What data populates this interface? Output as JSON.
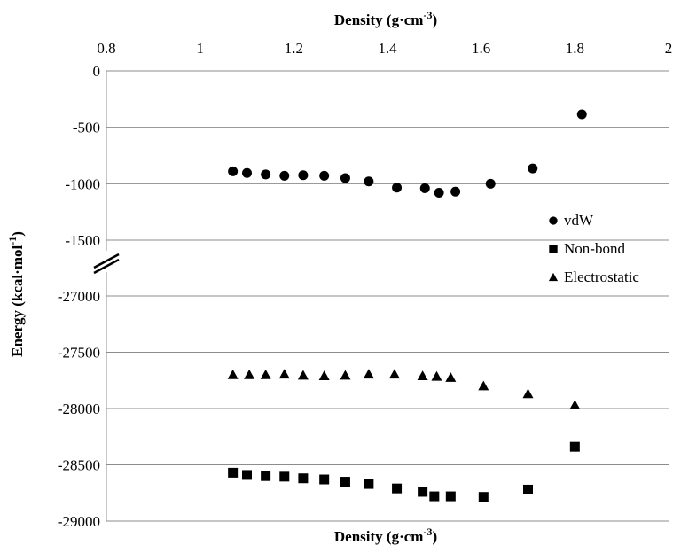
{
  "chart_data": {
    "type": "scatter",
    "x_axis_title": "Density (g·cm",
    "x_axis_title_sup": "-3",
    "x_axis_title_close": ")",
    "y_axis_title": "Energy (kcal·mol",
    "y_axis_title_sup": "-1",
    "y_axis_title_close": ")",
    "xlim": [
      0.8,
      2
    ],
    "x_ticks": [
      "0.8",
      "1",
      "1.2",
      "1.4",
      "1.6",
      "1.8",
      "2"
    ],
    "y_break": true,
    "y_upper_ticks": [
      "0",
      "-500",
      "-1000",
      "-1500"
    ],
    "y_lower_ticks": [
      "-27000",
      "-27500",
      "-28000",
      "-28500",
      "-29000"
    ],
    "y_upper_range": [
      -1500,
      0
    ],
    "y_lower_range": [
      -29000,
      -27000
    ],
    "grid": "horizontal",
    "legend_position": "right",
    "series": [
      {
        "name": "vdW",
        "marker": "circle",
        "color": "#000000",
        "points": [
          [
            1.07,
            -890
          ],
          [
            1.1,
            -905
          ],
          [
            1.14,
            -918
          ],
          [
            1.18,
            -930
          ],
          [
            1.22,
            -925
          ],
          [
            1.265,
            -930
          ],
          [
            1.31,
            -950
          ],
          [
            1.36,
            -980
          ],
          [
            1.42,
            -1035
          ],
          [
            1.48,
            -1040
          ],
          [
            1.51,
            -1080
          ],
          [
            1.545,
            -1070
          ],
          [
            1.62,
            -1000
          ],
          [
            1.71,
            -865
          ],
          [
            1.815,
            -385
          ]
        ]
      },
      {
        "name": "Non-bond",
        "marker": "square",
        "color": "#000000",
        "points": [
          [
            1.07,
            -28570
          ],
          [
            1.1,
            -28590
          ],
          [
            1.14,
            -28600
          ],
          [
            1.18,
            -28605
          ],
          [
            1.22,
            -28620
          ],
          [
            1.265,
            -28630
          ],
          [
            1.31,
            -28650
          ],
          [
            1.36,
            -28670
          ],
          [
            1.42,
            -28710
          ],
          [
            1.475,
            -28740
          ],
          [
            1.5,
            -28780
          ],
          [
            1.535,
            -28780
          ],
          [
            1.605,
            -28785
          ],
          [
            1.7,
            -28720
          ],
          [
            1.8,
            -28340
          ]
        ]
      },
      {
        "name": "Electrostatic",
        "marker": "triangle",
        "color": "#000000",
        "points": [
          [
            1.07,
            -27700
          ],
          [
            1.105,
            -27700
          ],
          [
            1.14,
            -27700
          ],
          [
            1.18,
            -27695
          ],
          [
            1.22,
            -27705
          ],
          [
            1.265,
            -27710
          ],
          [
            1.31,
            -27705
          ],
          [
            1.36,
            -27695
          ],
          [
            1.415,
            -27695
          ],
          [
            1.475,
            -27710
          ],
          [
            1.505,
            -27715
          ],
          [
            1.535,
            -27725
          ],
          [
            1.605,
            -27800
          ],
          [
            1.7,
            -27870
          ],
          [
            1.8,
            -27970
          ]
        ]
      }
    ]
  }
}
